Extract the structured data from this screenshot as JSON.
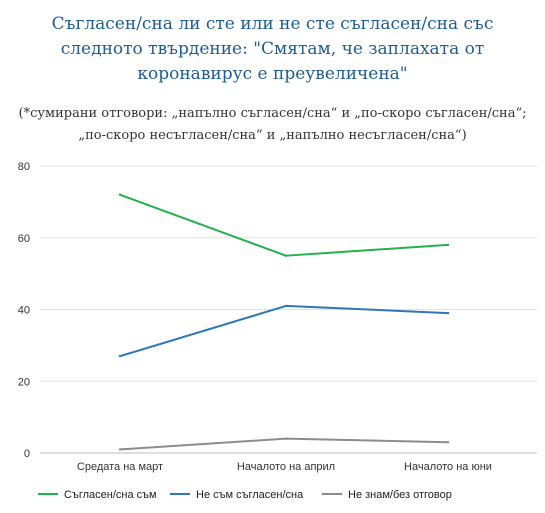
{
  "chart_data": {
    "type": "line",
    "title": "Съгласен/сна ли сте или не сте съгласен/сна със следното твърдение: \"Смятам, че заплахата от коронавирус е преувеличена\"",
    "subtitle": "(*сумирани отговори: „напълно съгласен/сна“ и „по-скоро съгласен/сна“; „по-скоро несъгласен/сна“ и „напълно несъгласен/сна“)",
    "categories": [
      "Средата на март",
      "Началото на април",
      "Началото на юни"
    ],
    "ylim": [
      0,
      80
    ],
    "yticks": [
      0,
      20,
      40,
      60,
      80
    ],
    "grid": true,
    "legend_position": "bottom",
    "series": [
      {
        "name": "Съгласен/сна съм",
        "color": "#22b14c",
        "values": [
          72,
          55,
          58
        ]
      },
      {
        "name": "Не съм съгласен/сна",
        "color": "#2e78b7",
        "values": [
          27,
          41,
          39
        ]
      },
      {
        "name": "Не знам/без отговор",
        "color": "#8c8c8c",
        "values": [
          1,
          4,
          3
        ]
      }
    ]
  }
}
